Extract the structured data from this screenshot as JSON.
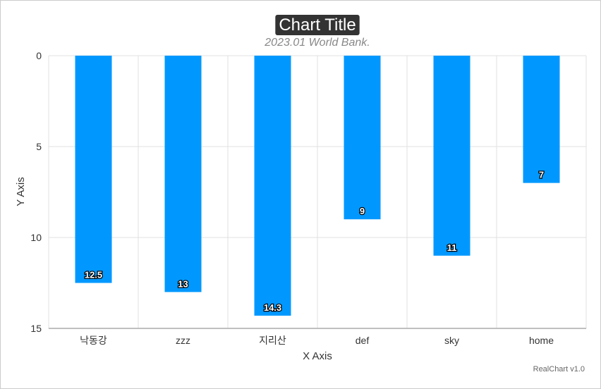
{
  "chart_data": {
    "type": "bar",
    "title": "Chart Title",
    "subtitle": "2023.01 World Bank.",
    "xlabel": "X Axis",
    "ylabel": "Y Axis",
    "categories": [
      "낙동강",
      "zzz",
      "지리산",
      "def",
      "sky",
      "home"
    ],
    "values": [
      12.5,
      13,
      14.3,
      9,
      11,
      7
    ],
    "ylim": [
      0,
      15
    ],
    "y_reversed": true,
    "yticks": [
      0,
      5,
      10,
      15
    ],
    "grid": true,
    "legend": "none",
    "bar_color": "#0098ff"
  },
  "credits": "RealChart v1.0"
}
